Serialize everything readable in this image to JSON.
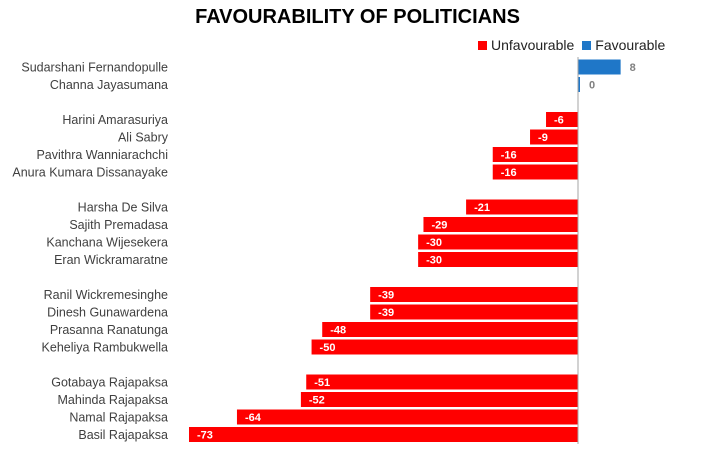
{
  "chart_data": {
    "type": "bar",
    "orientation": "horizontal",
    "title": "FAVOURABILITY OF POLITICIANS",
    "legend": [
      {
        "name": "Unfavourable",
        "color": "#ff0000"
      },
      {
        "name": "Favourable",
        "color": "#1f77c8"
      }
    ],
    "legend_position": "top-right",
    "xlim": [
      -73,
      8
    ],
    "grid": false,
    "groups": [
      {
        "categories": [
          "Sudarshani Fernandopulle",
          "Channa Jayasumana"
        ],
        "values": [
          8,
          0
        ]
      },
      {
        "categories": [
          "Harini Amarasuriya",
          "Ali Sabry",
          "Pavithra Wanniarachchi",
          "Anura Kumara Dissanayake"
        ],
        "values": [
          -6,
          -9,
          -16,
          -16
        ]
      },
      {
        "categories": [
          "Harsha De Silva",
          "Sajith Premadasa",
          "Kanchana Wijesekera",
          "Eran Wickramaratne"
        ],
        "values": [
          -21,
          -29,
          -30,
          -30
        ]
      },
      {
        "categories": [
          "Ranil Wickremesinghe",
          "Dinesh Gunawardena",
          "Prasanna Ranatunga",
          "Keheliya Rambukwella"
        ],
        "values": [
          -39,
          -39,
          -48,
          -50
        ]
      },
      {
        "categories": [
          "Gotabaya Rajapaksa",
          "Mahinda Rajapaksa",
          "Namal Rajapaksa",
          "Basil Rajapaksa"
        ],
        "values": [
          -51,
          -52,
          -64,
          -73
        ]
      }
    ],
    "colors": {
      "negative": "#ff0000",
      "positive": "#1f77c8",
      "zero_label": "#808080",
      "positive_label": "#808080",
      "negative_label": "#ffffff",
      "axis": "#a6a6a6"
    }
  }
}
